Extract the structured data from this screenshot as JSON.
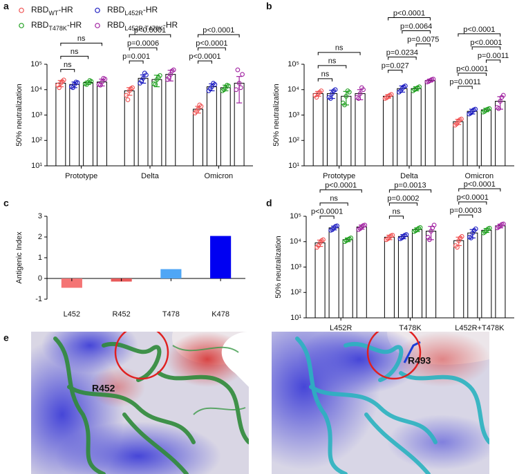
{
  "chart_data": [
    {
      "label": "a",
      "type": "bar",
      "log_scale": true,
      "ylabel": "50% neutralization",
      "categories": [
        "Prototype",
        "Delta",
        "Omicron"
      ],
      "legend": true,
      "ylim": [
        10,
        100000
      ],
      "yticks": [
        {
          "value": 10,
          "label": "10¹"
        },
        {
          "value": 100,
          "label": "10²"
        },
        {
          "value": 1000,
          "label": "10³"
        },
        {
          "value": 10000,
          "label": "10⁴"
        },
        {
          "value": 100000,
          "label": "10⁵"
        }
      ],
      "series": [
        {
          "name": [
            "RBD",
            "WT",
            "-HR"
          ],
          "color": "#f05050",
          "values": [
            18000,
            9000,
            1700
          ],
          "errors": [
            5000,
            3000,
            500
          ],
          "points": [
            [
              15000,
              24000,
              18000,
              12000,
              21000
            ],
            [
              6000,
              12000,
              9000,
              4000,
              11000
            ],
            [
              1200,
              2200,
              1700,
              1400,
              2500
            ]
          ]
        },
        {
          "name": [
            "RBD",
            "L452R",
            "-HR"
          ],
          "color": "#1a1ac0",
          "values": [
            16000,
            28000,
            13000
          ],
          "errors": [
            4000,
            10000,
            4000
          ],
          "points": [
            [
              13000,
              19000,
              16000,
              12000,
              20000
            ],
            [
              18000,
              38000,
              28000,
              22000,
              45000
            ],
            [
              9000,
              16000,
              13000,
              11000,
              18000
            ]
          ]
        },
        {
          "name": [
            "RBD",
            "T478K",
            "-HR"
          ],
          "color": "#20a020",
          "values": [
            19000,
            25000,
            12000
          ],
          "errors": [
            3000,
            12000,
            3000
          ],
          "points": [
            [
              17000,
              21000,
              19000,
              16000,
              23000
            ],
            [
              17000,
              36000,
              25000,
              16000,
              30000
            ],
            [
              9000,
              14000,
              12000,
              10000,
              15000
            ]
          ]
        },
        {
          "name": [
            "RBD",
            "L452R,T478K",
            "-HR"
          ],
          "color": "#a020a0",
          "values": [
            20000,
            40000,
            18000
          ],
          "errors": [
            6000,
            18000,
            15000
          ],
          "points": [
            [
              16000,
              26000,
              20000,
              15000,
              28000
            ],
            [
              25000,
              60000,
              40000,
              30000,
              55000
            ],
            [
              10000,
              40000,
              18000,
              60000,
              12000
            ]
          ]
        }
      ],
      "comparisons": [
        {
          "group": 0,
          "from": 0,
          "to": 1,
          "label": "ns"
        },
        {
          "group": 0,
          "from": 0,
          "to": 2,
          "label": "ns"
        },
        {
          "group": 0,
          "from": 0,
          "to": 3,
          "label": "ns"
        },
        {
          "group": 1,
          "from": 0,
          "to": 1,
          "label": "p=0.001"
        },
        {
          "group": 1,
          "from": 0,
          "to": 2,
          "label": "p=0.0006"
        },
        {
          "group": 1,
          "from": 0,
          "to": 3,
          "label": "p<0.0001"
        },
        {
          "group": 2,
          "from": 0,
          "to": 1,
          "label": "p<0.0001"
        },
        {
          "group": 2,
          "from": 0,
          "to": 2,
          "label": "p<0.0001"
        },
        {
          "group": 2,
          "from": 0,
          "to": 3,
          "label": "p<0.0001"
        }
      ]
    },
    {
      "label": "b",
      "type": "bar",
      "log_scale": true,
      "ylabel": "50% neutralization",
      "categories": [
        "Prototype",
        "Delta",
        "Omicron"
      ],
      "ylim": [
        10,
        100000
      ],
      "yticks": [
        {
          "value": 10,
          "label": "10¹"
        },
        {
          "value": 100,
          "label": "10²"
        },
        {
          "value": 1000,
          "label": "10³"
        },
        {
          "value": 10000,
          "label": "10⁴"
        },
        {
          "value": 100000,
          "label": "10⁵"
        }
      ],
      "series": [
        {
          "color": "#f05050",
          "values": [
            7000,
            5500,
            550
          ],
          "errors": [
            1500,
            900,
            130
          ],
          "points": [
            [
              6000,
              9000,
              7000,
              5000,
              8000
            ],
            [
              4500,
              6500,
              5500,
              4800,
              6000
            ],
            [
              400,
              700,
              550,
              450,
              650
            ]
          ]
        },
        {
          "color": "#1a1ac0",
          "values": [
            7000,
            11000,
            1400
          ],
          "errors": [
            2500,
            3000,
            300
          ],
          "points": [
            [
              5000,
              10000,
              7000,
              4500,
              9000
            ],
            [
              8000,
              14000,
              11000,
              9000,
              13000
            ],
            [
              1100,
              1700,
              1400,
              1200,
              1600
            ]
          ]
        },
        {
          "color": "#20a020",
          "values": [
            5500,
            11000,
            1600
          ],
          "errors": [
            3000,
            2000,
            250
          ],
          "points": [
            [
              3000,
              8000,
              5500,
              2500,
              9000
            ],
            [
              9000,
              13000,
              11000,
              10000,
              12000
            ],
            [
              1300,
              1800,
              1600,
              1400,
              1700
            ]
          ]
        },
        {
          "color": "#a020a0",
          "values": [
            7000,
            23000,
            3500
          ],
          "errors": [
            3000,
            3000,
            1800
          ],
          "points": [
            [
              5000,
              10000,
              7000,
              4500,
              12000
            ],
            [
              20000,
              26000,
              23000,
              21000,
              25000
            ],
            [
              2000,
              6000,
              3500,
              1800,
              5000
            ]
          ]
        }
      ],
      "comparisons": [
        {
          "group": 0,
          "from": 0,
          "to": 1,
          "label": "ns"
        },
        {
          "group": 0,
          "from": 0,
          "to": 2,
          "label": "ns"
        },
        {
          "group": 0,
          "from": 0,
          "to": 3,
          "label": "ns"
        },
        {
          "group": 1,
          "from": 0,
          "to": 1,
          "label": "p=0.027"
        },
        {
          "group": 1,
          "from": 0,
          "to": 2,
          "label": "p=0.0234"
        },
        {
          "group": 1,
          "from": 2,
          "to": 3,
          "label": "p=0.0075"
        },
        {
          "group": 1,
          "from": 1,
          "to": 3,
          "label": "p=0.0064"
        },
        {
          "group": 1,
          "from": 0,
          "to": 3,
          "label": "p<0.0001"
        },
        {
          "group": 2,
          "from": 0,
          "to": 1,
          "label": "p=0.0011"
        },
        {
          "group": 2,
          "from": 0,
          "to": 2,
          "label": "p<0.0001"
        },
        {
          "group": 2,
          "from": 2,
          "to": 3,
          "label": "p=0.0011"
        },
        {
          "group": 2,
          "from": 1,
          "to": 3,
          "label": "p<0.0001"
        },
        {
          "group": 2,
          "from": 0,
          "to": 3,
          "label": "p<0.0001"
        }
      ]
    },
    {
      "label": "c",
      "type": "simple_bar",
      "ylabel": "Antigenic Index",
      "categories": [
        "L452",
        "R452",
        "T478",
        "K478"
      ],
      "values": [
        -0.45,
        -0.15,
        0.45,
        2.05
      ],
      "colors": [
        "#f47474",
        "#e85a5a",
        "#4fa6f5",
        "#0000f2"
      ],
      "ylim": [
        -1,
        3
      ],
      "yticks": [
        -1,
        0,
        1,
        2,
        3
      ]
    },
    {
      "label": "d",
      "type": "bar",
      "log_scale": true,
      "ylabel": "50% neutralization",
      "categories": [
        "L452R",
        "T478K",
        "L452R+T478K"
      ],
      "ylim": [
        10,
        100000
      ],
      "yticks": [
        {
          "value": 10,
          "label": "10¹"
        },
        {
          "value": 100,
          "label": "10²"
        },
        {
          "value": 1000,
          "label": "10³"
        },
        {
          "value": 10000,
          "label": "10⁴"
        },
        {
          "value": 100000,
          "label": "10⁵"
        }
      ],
      "series": [
        {
          "color": "#f05050",
          "values": [
            9000,
            15000,
            11000
          ],
          "errors": [
            2500,
            3000,
            4000
          ],
          "points": [
            [
              6000,
              12000,
              9000,
              7000,
              11000
            ],
            [
              12000,
              18000,
              15000,
              13000,
              17000
            ],
            [
              7000,
              16000,
              11000,
              6000,
              14000
            ]
          ]
        },
        {
          "color": "#1a1ac0",
          "values": [
            35000,
            16000,
            22000
          ],
          "errors": [
            6000,
            3000,
            8000
          ],
          "points": [
            [
              28000,
              42000,
              35000,
              30000,
              40000
            ],
            [
              13000,
              19000,
              16000,
              14000,
              18000
            ],
            [
              15000,
              32000,
              22000,
              14000,
              28000
            ]
          ]
        },
        {
          "color": "#20a020",
          "values": [
            12000,
            30000,
            28000
          ],
          "errors": [
            2000,
            5000,
            5000
          ],
          "points": [
            [
              10000,
              14000,
              12000,
              11000,
              13000
            ],
            [
              25000,
              36000,
              30000,
              27000,
              34000
            ],
            [
              22000,
              34000,
              28000,
              24000,
              32000
            ]
          ]
        },
        {
          "color": "#a020a0",
          "values": [
            38000,
            26000,
            42000
          ],
          "errors": [
            7000,
            14000,
            7000
          ],
          "points": [
            [
              30000,
              45000,
              38000,
              33000,
              43000
            ],
            [
              15000,
              45000,
              26000,
              12000,
              35000
            ],
            [
              35000,
              50000,
              42000,
              38000,
              48000
            ]
          ]
        }
      ],
      "comparisons": [
        {
          "group": 0,
          "from": 0,
          "to": 1,
          "label": "p<0.0001"
        },
        {
          "group": 0,
          "from": 0,
          "to": 2,
          "label": "ns"
        },
        {
          "group": 0,
          "from": 0,
          "to": 3,
          "label": "p<0.0001"
        },
        {
          "group": 1,
          "from": 0,
          "to": 1,
          "label": "ns"
        },
        {
          "group": 1,
          "from": 0,
          "to": 2,
          "label": "p=0.0002"
        },
        {
          "group": 1,
          "from": 0,
          "to": 3,
          "label": "p=0.0013"
        },
        {
          "group": 2,
          "from": 0,
          "to": 1,
          "label": "p=0.0003"
        },
        {
          "group": 2,
          "from": 0,
          "to": 2,
          "label": "p<0.0001"
        },
        {
          "group": 2,
          "from": 0,
          "to": 3,
          "label": "p<0.0001"
        }
      ]
    }
  ],
  "panel_e": {
    "label": "e",
    "annotations": [
      "R452",
      "R493"
    ]
  }
}
